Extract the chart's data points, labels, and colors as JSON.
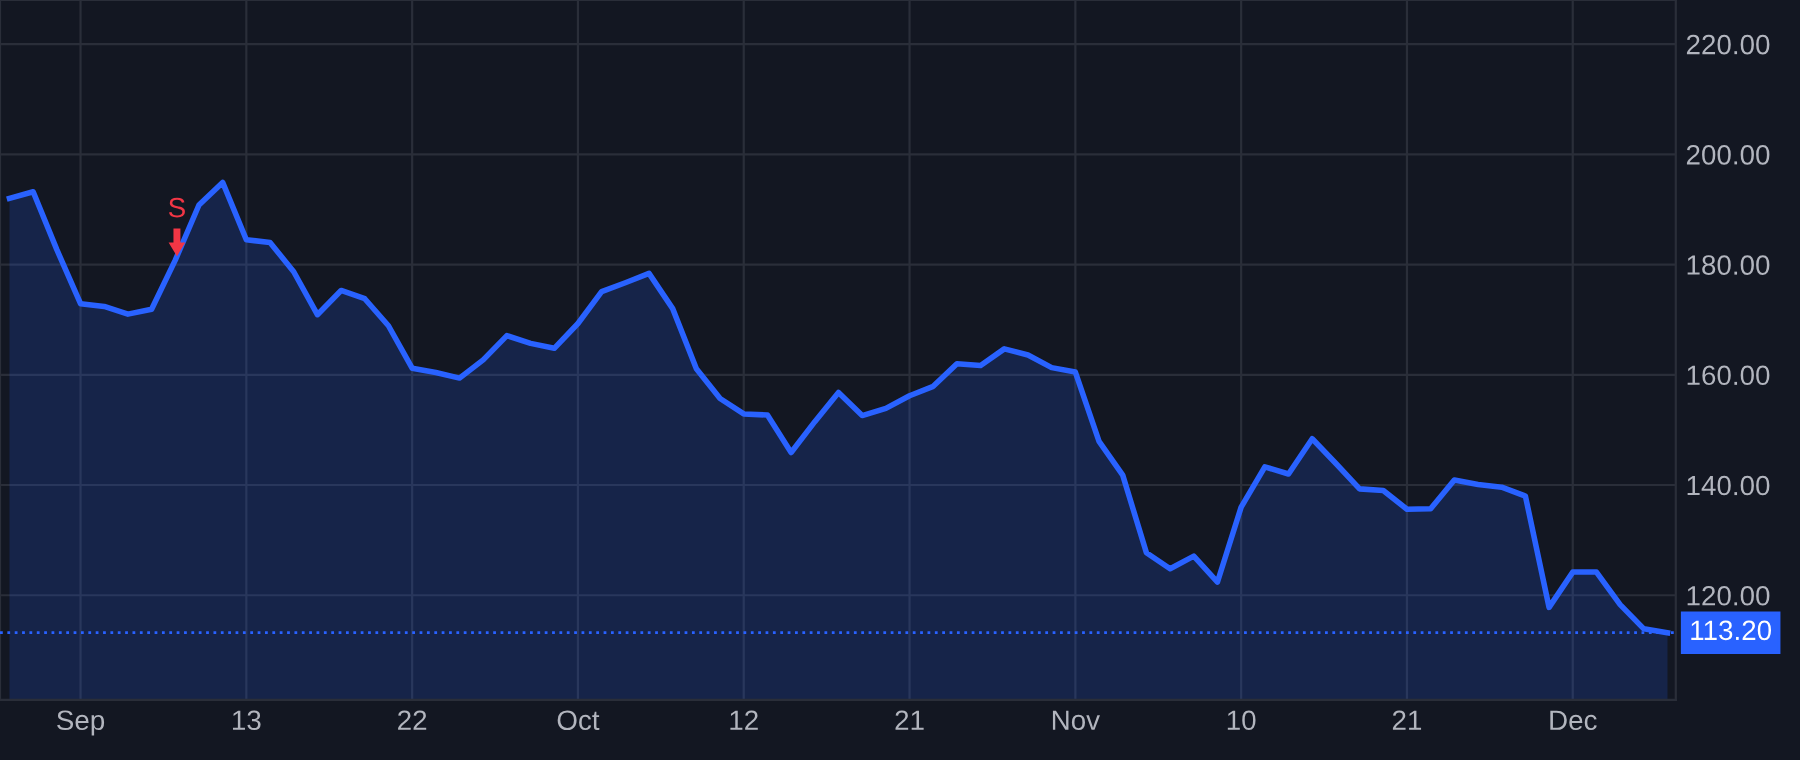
{
  "chart_data": {
    "type": "area",
    "categories": [
      null,
      null,
      null,
      "Sep",
      null,
      null,
      null,
      null,
      null,
      null,
      "13",
      null,
      null,
      null,
      null,
      null,
      null,
      "22",
      null,
      null,
      null,
      null,
      null,
      null,
      "Oct",
      null,
      null,
      null,
      null,
      null,
      null,
      "12",
      null,
      null,
      null,
      null,
      null,
      null,
      "21",
      null,
      null,
      null,
      null,
      null,
      null,
      "Nov",
      null,
      null,
      null,
      null,
      null,
      null,
      "10",
      null,
      null,
      null,
      null,
      null,
      null,
      "21",
      null,
      null,
      null,
      null,
      null,
      null,
      "Dec",
      null,
      null,
      null,
      null
    ],
    "series": [
      {
        "color": "#2962ff",
        "values": [
          192.0,
          193.2,
          182.7,
          172.9,
          172.4,
          171.0,
          171.9,
          180.8,
          190.8,
          194.9,
          184.5,
          184.0,
          178.7,
          170.9,
          175.3,
          173.8,
          168.9,
          161.2,
          160.4,
          159.4,
          162.7,
          167.1,
          165.7,
          164.8,
          169.3,
          175.1,
          176.7,
          178.4,
          172.0,
          161.1,
          155.7,
          152.9,
          152.7,
          145.9,
          151.5,
          156.8,
          152.6,
          153.9,
          156.2,
          157.9,
          162.0,
          161.7,
          164.7,
          163.6,
          161.3,
          160.5,
          147.9,
          141.8,
          127.7,
          124.8,
          127.1,
          122.4,
          136.0,
          143.3,
          142.0,
          148.4,
          143.9,
          139.3,
          139.0,
          135.6,
          135.7,
          140.9,
          140.1,
          139.6,
          138.0,
          117.8,
          124.2,
          124.2,
          118.3,
          113.9,
          113.2
        ]
      }
    ],
    "ylim": [
      101,
      228
    ],
    "yticks": [
      {
        "value": 120,
        "label": "120.00"
      },
      {
        "value": 140,
        "label": "140.00"
      },
      {
        "value": 160,
        "label": "160.00"
      },
      {
        "value": 180,
        "label": "180.00"
      },
      {
        "value": 200,
        "label": "200.00"
      },
      {
        "value": 220,
        "label": "220.00"
      }
    ],
    "ref_lines": [
      {
        "axis": "y",
        "value": 113.2,
        "label": "113.20",
        "color": "#2962ff",
        "line_style": "dotted"
      }
    ],
    "annotations": [
      {
        "text": "S",
        "y": 181.5
      }
    ],
    "grid": true,
    "legend": false
  }
}
